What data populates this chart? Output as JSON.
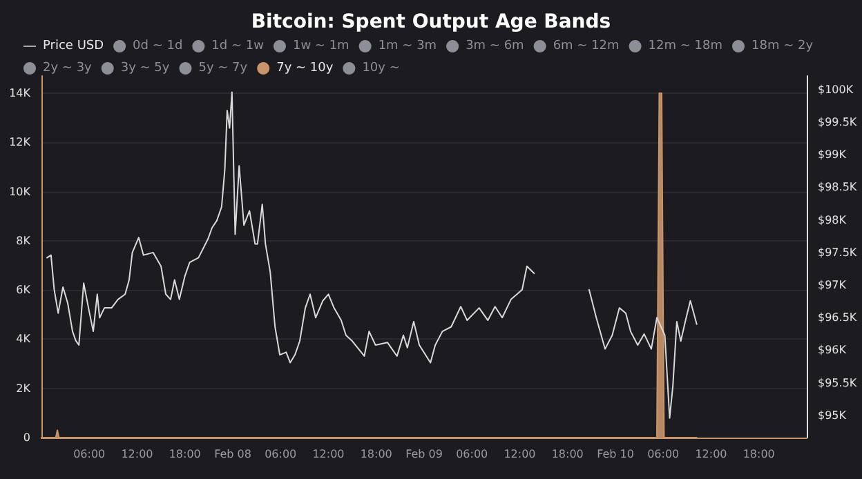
{
  "chart_data": {
    "type": "line",
    "title": "Bitcoin: Spent Output Age Bands",
    "legend": "top",
    "grid": "y",
    "marker": "none",
    "line_style": "solid",
    "xlim": [
      "--02-07T00:00",
      "--02-11T00:00"
    ],
    "xticks": [
      {
        "value": "--02-07T06:00",
        "label": "06:00"
      },
      {
        "value": "--02-07T12:00",
        "label": "12:00"
      },
      {
        "value": "--02-07T18:00",
        "label": "18:00"
      },
      {
        "value": "--02-08T00:00",
        "label": "Feb 08"
      },
      {
        "value": "--02-08T06:00",
        "label": "06:00"
      },
      {
        "value": "--02-08T12:00",
        "label": "12:00"
      },
      {
        "value": "--02-08T18:00",
        "label": "18:00"
      },
      {
        "value": "--02-09T00:00",
        "label": "Feb 09"
      },
      {
        "value": "--02-09T06:00",
        "label": "06:00"
      },
      {
        "value": "--02-09T12:00",
        "label": "12:00"
      },
      {
        "value": "--02-09T18:00",
        "label": "18:00"
      },
      {
        "value": "--02-10T00:00",
        "label": "Feb 10"
      },
      {
        "value": "--02-10T06:00",
        "label": "06:00"
      },
      {
        "value": "--02-10T12:00",
        "label": "12:00"
      },
      {
        "value": "--02-10T18:00",
        "label": "18:00"
      }
    ],
    "ylim": [
      0,
      14700
    ],
    "yticks": [
      0,
      {
        "value": 2000,
        "label": "2K"
      },
      {
        "value": 4000,
        "label": "4K"
      },
      {
        "value": 6000,
        "label": "6K"
      },
      {
        "value": 8000,
        "label": "8K"
      },
      {
        "value": 10000,
        "label": "10K"
      },
      {
        "value": 12000,
        "label": "12K"
      },
      {
        "value": 14000,
        "label": "14K"
      }
    ],
    "y2lim": [
      94660,
      100210
    ],
    "y2ticks": [
      {
        "value": 95000,
        "label": "$95K"
      },
      {
        "value": 95500,
        "label": "$95.5K"
      },
      {
        "value": 96000,
        "label": "$96K"
      },
      {
        "value": 96500,
        "label": "$96.5K"
      },
      {
        "value": 97000,
        "label": "$97K"
      },
      {
        "value": 97500,
        "label": "$97.5K"
      },
      {
        "value": 98000,
        "label": "$98K"
      },
      {
        "value": 98500,
        "label": "$98.5K"
      },
      {
        "value": 99000,
        "label": "$99K"
      },
      {
        "value": 99500,
        "label": "$99.5K"
      },
      {
        "value": 100000,
        "label": "$100K"
      }
    ],
    "series": [
      {
        "name": "Price USD",
        "axis": "y2",
        "color": "#d9d9d9",
        "x": [
          "--02-07T00:42",
          "--02-07T01:12",
          "--02-07T01:36",
          "--02-07T02:06",
          "--02-07T02:42",
          "--02-07T03:18",
          "--02-07T03:54",
          "--02-07T04:18",
          "--02-07T04:42",
          "--02-07T05:18",
          "--02-07T05:54",
          "--02-07T06:30",
          "--02-07T07:00",
          "--02-07T07:18",
          "--02-07T07:54",
          "--02-07T08:48",
          "--02-07T09:36",
          "--02-07T10:30",
          "--02-07T11:00",
          "--02-07T11:24",
          "--02-07T12:12",
          "--02-07T12:48",
          "--02-07T14:00",
          "--02-07T15:00",
          "--02-07T15:36",
          "--02-07T16:12",
          "--02-07T16:42",
          "--02-07T17:18",
          "--02-07T18:00",
          "--02-07T18:36",
          "--02-07T19:42",
          "--02-07T20:54",
          "--02-07T21:24",
          "--02-07T22:00",
          "--02-07T22:36",
          "--02-07T23:00",
          "--02-07T23:18",
          "--02-07T23:36",
          "--02-07T23:54",
          "--02-08T00:18",
          "--02-08T00:48",
          "--02-08T01:24",
          "--02-08T02:06",
          "--02-08T02:48",
          "--02-08T03:06",
          "--02-08T03:42",
          "--02-08T04:06",
          "--02-08T04:42",
          "--02-08T05:18",
          "--02-08T05:54",
          "--02-08T06:42",
          "--02-08T07:12",
          "--02-08T07:48",
          "--02-08T08:24",
          "--02-08T09:06",
          "--02-08T09:42",
          "--02-08T10:24",
          "--02-08T11:18",
          "--02-08T12:00",
          "--02-08T12:42",
          "--02-08T13:36",
          "--02-08T14:12",
          "--02-08T15:00",
          "--02-08T16:30",
          "--02-08T17:06",
          "--02-08T17:54",
          "--02-08T19:24",
          "--02-08T20:36",
          "--02-08T21:24",
          "--02-08T21:54",
          "--02-08T22:42",
          "--02-08T23:24",
          "--02-09T00:48",
          "--02-09T01:24",
          "--02-09T02:18",
          "--02-09T03:24",
          "--02-09T04:36",
          "--02-09T05:24",
          "--02-09T06:54",
          "--02-09T08:00",
          "--02-09T08:54",
          "--02-09T09:48",
          "--02-09T10:54",
          "--02-09T12:18",
          "--02-09T12:54",
          "--02-09T13:48",
          "--02-09T17:00",
          "--02-09T20:42",
          "--02-09T21:36",
          "--02-09T22:42",
          "--02-09T23:36",
          "--02-10T00:30",
          "--02-10T01:18",
          "--02-10T01:54",
          "--02-10T02:48",
          "--02-10T03:36",
          "--02-10T04:30",
          "--02-10T05:12",
          "--02-10T06:12",
          "--02-10T06:48",
          "--02-10T07:12",
          "--02-10T07:42",
          "--02-10T08:12",
          "--02-10T08:48",
          "--02-10T09:24",
          "--02-10T10:12"
        ],
        "values": [
          97420,
          97460,
          96930,
          96570,
          96970,
          96720,
          96290,
          96150,
          96080,
          97030,
          96650,
          96290,
          96860,
          96500,
          96650,
          96650,
          96780,
          96860,
          97080,
          97500,
          97730,
          97460,
          97500,
          97290,
          96860,
          96780,
          97080,
          96780,
          97140,
          97350,
          97420,
          97710,
          97880,
          97990,
          98200,
          98770,
          99680,
          99410,
          99960,
          97780,
          98830,
          97920,
          98140,
          97630,
          97630,
          98240,
          97630,
          97200,
          96360,
          95930,
          95970,
          95810,
          95930,
          96140,
          96650,
          96860,
          96500,
          96760,
          96860,
          96650,
          96460,
          96230,
          96140,
          95910,
          96290,
          96080,
          96120,
          95910,
          96230,
          96040,
          96440,
          96080,
          95810,
          96080,
          96290,
          96360,
          96670,
          96460,
          96650,
          96460,
          96670,
          96500,
          96780,
          96930,
          97290,
          97180,
          null,
          96930,
          96500,
          96020,
          96230,
          96650,
          96570,
          96290,
          96080,
          96250,
          96020,
          96500,
          96230,
          94960,
          95440,
          96440,
          96140,
          96460,
          96760,
          96400
        ]
      },
      {
        "name": "0d ~ 1d",
        "color": "#8e8e96"
      },
      {
        "name": "1d ~ 1w",
        "color": "#8e8e96"
      },
      {
        "name": "1w ~ 1m",
        "color": "#8e8e96"
      },
      {
        "name": "1m ~ 3m",
        "color": "#8e8e96"
      },
      {
        "name": "3m ~ 6m",
        "color": "#8e8e96"
      },
      {
        "name": "6m ~ 12m",
        "color": "#8e8e96"
      },
      {
        "name": "12m ~ 18m",
        "color": "#8e8e96"
      },
      {
        "name": "18m ~ 2y",
        "color": "#8e8e96"
      },
      {
        "name": "2y ~ 3y",
        "color": "#8e8e96"
      },
      {
        "name": "3y ~ 5y",
        "color": "#8e8e96"
      },
      {
        "name": "5y ~ 7y",
        "color": "#8e8e96"
      },
      {
        "name": "7y ~ 10y",
        "type": "area",
        "color": "#c8956a",
        "x": [
          "--02-07T00:00",
          "--02-07T01:48",
          "--02-07T02:00",
          "--02-07T02:12",
          "--02-10T05:12",
          "--02-10T05:30",
          "--02-10T05:48",
          "--02-10T06:06",
          "--02-10T10:12"
        ],
        "values": [
          0,
          0,
          300,
          0,
          0,
          14000,
          14000,
          0,
          0
        ]
      },
      {
        "name": "10y ~",
        "color": "#8e8e96"
      }
    ]
  }
}
